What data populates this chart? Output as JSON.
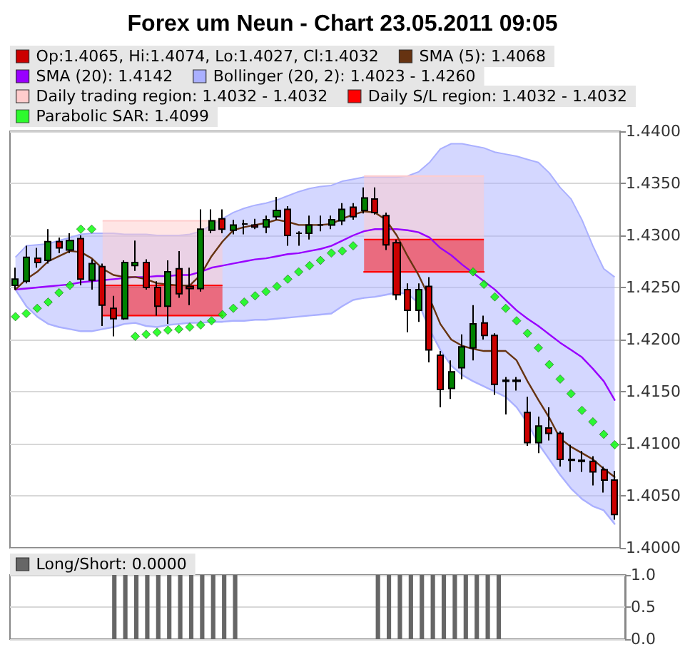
{
  "chart_data": [
    {
      "type": "candlestick",
      "title": "Forex um Neun - Chart 23.05.2011 09:05",
      "categories": [
        null,
        null,
        null,
        null,
        null,
        null,
        null,
        null,
        null,
        null,
        null,
        null,
        null,
        null,
        null,
        null,
        null,
        null,
        null,
        null,
        null,
        null,
        null,
        null,
        null,
        null,
        null,
        null,
        null,
        null,
        null,
        null,
        null,
        null,
        null,
        null,
        null,
        null,
        null,
        null,
        null,
        null,
        null,
        null,
        null,
        null,
        null,
        null,
        null,
        null,
        null,
        null,
        null,
        null,
        null,
        null
      ],
      "ylim": [
        1.4,
        1.44
      ],
      "yticks": [
        {
          "value": 1.4,
          "label": "1.4000"
        },
        {
          "value": 1.405,
          "label": "1.4050"
        },
        {
          "value": 1.41,
          "label": "1.4100"
        },
        {
          "value": 1.415,
          "label": "1.4150"
        },
        {
          "value": 1.42,
          "label": "1.4200"
        },
        {
          "value": 1.425,
          "label": "1.4250"
        },
        {
          "value": 1.43,
          "label": "1.4300"
        },
        {
          "value": 1.435,
          "label": "1.4350"
        },
        {
          "value": 1.44,
          "label": "1.4400"
        }
      ],
      "grid": "y",
      "legend": "top left",
      "tick_labels": "y",
      "series": [
        {
          "type": "area",
          "name": "Bollinger (20, 2): 1.4023 - 1.4260",
          "color": "#aab0ff",
          "values": [
            1.4279,
            1.429,
            1.4291,
            1.4292,
            1.4295,
            1.4298,
            1.4301,
            1.4302,
            1.4302,
            1.4302,
            1.4301,
            1.4301,
            1.4301,
            1.43,
            1.43,
            1.43,
            1.4301,
            1.4304,
            1.431,
            1.4316,
            1.4322,
            1.4326,
            1.4329,
            1.4331,
            1.4334,
            1.4338,
            1.4342,
            1.4345,
            1.4347,
            1.4348,
            1.4352,
            1.4354,
            1.4356,
            1.4356,
            1.4356,
            1.4356,
            1.4357,
            1.4361,
            1.437,
            1.4383,
            1.4388,
            1.4388,
            1.4386,
            1.4384,
            1.438,
            1.4378,
            1.4376,
            1.4373,
            1.437,
            1.436,
            1.4346,
            1.4335,
            1.4315,
            1.429,
            1.4268,
            1.426
          ]
        },
        {
          "type": "line",
          "color": "#aab0ff",
          "values": [
            1.4248,
            1.4232,
            1.4222,
            1.4215,
            1.4212,
            1.421,
            1.4208,
            1.4208,
            1.421,
            1.4212,
            1.4215,
            1.4216,
            1.4213,
            1.4212,
            1.4214,
            1.4215,
            1.4216,
            1.4216,
            1.4217,
            1.4217,
            1.4218,
            1.4218,
            1.4219,
            1.4219,
            1.422,
            1.4221,
            1.4222,
            1.4223,
            1.4224,
            1.4225,
            1.4232,
            1.4238,
            1.424,
            1.4241,
            1.4243,
            1.4245,
            1.4244,
            1.4235,
            1.421,
            1.419,
            1.4175,
            1.4166,
            1.416,
            1.4155,
            1.415,
            1.4145,
            1.4135,
            1.412,
            1.41,
            1.4085,
            1.407,
            1.4057,
            1.4047,
            1.404,
            1.4036,
            1.4023
          ]
        },
        {
          "type": "area",
          "name": "Daily trading region: 1.4032 - 1.4032",
          "color": "#ffcccc",
          "values": [
            null,
            null,
            null,
            null,
            null,
            null,
            null,
            null,
            1.4314,
            1.4314,
            1.4314,
            1.4314,
            1.4314,
            1.4314,
            1.4314,
            1.4314,
            1.4314,
            1.4314,
            1.4314,
            1.4314,
            null,
            null,
            null,
            null,
            null,
            null,
            null,
            null,
            null,
            null,
            null,
            null,
            1.4357,
            1.4357,
            1.4357,
            1.4357,
            1.4357,
            1.4357,
            1.4357,
            1.4357,
            1.4357,
            1.4357,
            1.4357,
            1.4357,
            null,
            null,
            null,
            null,
            null,
            null,
            null,
            null,
            null,
            null,
            null,
            null
          ]
        },
        {
          "type": "area",
          "name": "Daily S/L region: 1.4032 - 1.4032",
          "color": "#ff0000",
          "values": [
            null,
            null,
            null,
            null,
            null,
            null,
            null,
            null,
            1.4252,
            1.4252,
            1.4252,
            1.4252,
            1.4252,
            1.4252,
            1.4252,
            1.4252,
            1.4252,
            1.4252,
            1.4252,
            1.4252,
            null,
            null,
            null,
            null,
            null,
            null,
            null,
            null,
            null,
            null,
            null,
            null,
            1.4296,
            1.4296,
            1.4296,
            1.4296,
            1.4296,
            1.4296,
            1.4296,
            1.4296,
            1.4296,
            1.4296,
            1.4296,
            1.4296,
            null,
            null,
            null,
            null,
            null,
            null,
            null,
            null,
            null,
            null,
            null,
            null
          ]
        },
        {
          "type": "line",
          "color": "#ff0000",
          "values": [
            null,
            null,
            null,
            null,
            null,
            null,
            null,
            null,
            1.4223,
            1.4223,
            1.4223,
            1.4223,
            1.4223,
            1.4223,
            1.4223,
            1.4223,
            1.4223,
            1.4223,
            1.4223,
            1.4223,
            null,
            null,
            null,
            null,
            null,
            null,
            null,
            null,
            null,
            null,
            null,
            null,
            1.4265,
            1.4265,
            1.4265,
            1.4265,
            1.4265,
            1.4265,
            1.4265,
            1.4265,
            1.4265,
            1.4265,
            1.4265,
            1.4265,
            null,
            null,
            null,
            null,
            null,
            null,
            null,
            null,
            null,
            null,
            null,
            null
          ]
        },
        {
          "type": "line",
          "name": "SMA (20): 1.4142",
          "color": "#9900ff",
          "values": [
            1.4248,
            1.4249,
            1.425,
            1.4251,
            1.4252,
            1.4253,
            1.4255,
            1.4256,
            1.4257,
            1.4258,
            1.4259,
            1.426,
            1.426,
            1.4261,
            1.4261,
            1.4262,
            1.4262,
            1.4265,
            1.4269,
            1.4271,
            1.4273,
            1.4275,
            1.4277,
            1.4278,
            1.428,
            1.4282,
            1.4283,
            1.4285,
            1.4287,
            1.429,
            1.4295,
            1.43,
            1.4304,
            1.4306,
            1.4306,
            1.4306,
            1.4305,
            1.4303,
            1.4298,
            1.4288,
            1.4281,
            1.4272,
            1.4264,
            1.4256,
            1.4248,
            1.4238,
            1.4228,
            1.422,
            1.4213,
            1.4205,
            1.4197,
            1.419,
            1.4183,
            1.4172,
            1.416,
            1.4142
          ]
        },
        {
          "type": "line",
          "name": "SMA (5): 1.4068",
          "color": "#663311",
          "values": [
            1.4248,
            1.4258,
            1.4265,
            1.4275,
            1.428,
            1.4285,
            1.4284,
            1.4278,
            1.4268,
            1.4262,
            1.426,
            1.426,
            1.4258,
            1.4254,
            1.4253,
            1.4252,
            1.4252,
            1.4262,
            1.428,
            1.4294,
            1.4305,
            1.4308,
            1.431,
            1.4312,
            1.4315,
            1.4313,
            1.431,
            1.431,
            1.431,
            1.4311,
            1.4316,
            1.432,
            1.4323,
            1.4322,
            1.4315,
            1.43,
            1.428,
            1.4262,
            1.424,
            1.4215,
            1.42,
            1.4194,
            1.4191,
            1.4189,
            1.4189,
            1.4189,
            1.418,
            1.416,
            1.4142,
            1.4125,
            1.4105,
            1.4097,
            1.4091,
            1.4085,
            1.4076,
            1.4068
          ]
        },
        {
          "type": "scatter",
          "name": "Parabolic SAR: 1.4099",
          "color": "#00ff00",
          "marker": "diamond",
          "values": [
            1.4222,
            1.4225,
            1.423,
            1.4236,
            1.4245,
            1.4252,
            1.4306,
            1.4306,
            null,
            null,
            null,
            1.4203,
            1.4205,
            1.4207,
            1.4209,
            1.421,
            1.4212,
            1.4214,
            1.4218,
            1.4224,
            1.423,
            1.4236,
            1.4242,
            1.4246,
            1.4251,
            1.4258,
            1.4265,
            1.4271,
            1.4276,
            1.4283,
            1.4285,
            1.429,
            null,
            null,
            null,
            null,
            null,
            null,
            null,
            null,
            null,
            null,
            1.4265,
            1.4253,
            1.4241,
            1.423,
            1.4218,
            1.4206,
            1.4192,
            1.4176,
            1.4162,
            1.4148,
            1.4132,
            1.4121,
            1.4109,
            1.4099
          ]
        },
        {
          "type": "candlestick",
          "name": "Op:1.4065, Hi:1.4074, Lo:1.4027, Cl:1.4032",
          "color": "#cc0000",
          "colors": [
            "#008000",
            "#008000",
            "#cc0000",
            "#008000",
            "#cc0000",
            "#008000",
            "#cc0000",
            "#008000",
            "#cc0000",
            "#cc0000",
            "#008000",
            "#008000",
            "#cc0000",
            "#cc0000",
            "#008000",
            "#cc0000",
            "#cc0000",
            "#008000",
            "#008000",
            "#cc0000",
            "#008000",
            "#000000",
            "#cc0000",
            "#008000",
            "#008000",
            "#cc0000",
            "#000000",
            "#008000",
            "#000000",
            "#008000",
            "#008000",
            "#cc0000",
            "#008000",
            "#cc0000",
            "#cc0000",
            "#cc0000",
            "#cc0000",
            "#008000",
            "#cc0000",
            "#cc0000",
            "#008000",
            "#008000",
            "#008000",
            "#cc0000",
            "#cc0000",
            "#000000",
            "#000000",
            "#cc0000",
            "#008000",
            "#cc0000",
            "#cc0000",
            "#000000",
            "#000000",
            "#cc0000",
            "#cc0000",
            "#cc0000"
          ],
          "ohlc": [
            [
              1.4252,
              1.4269,
              1.4248,
              1.4258
            ],
            [
              1.4256,
              1.429,
              1.4254,
              1.4279
            ],
            [
              1.4278,
              1.4288,
              1.4269,
              1.4274
            ],
            [
              1.4276,
              1.4306,
              1.4273,
              1.4294
            ],
            [
              1.4294,
              1.4298,
              1.4283,
              1.4288
            ],
            [
              1.4286,
              1.4302,
              1.4283,
              1.4295
            ],
            [
              1.4297,
              1.43,
              1.4252,
              1.4258
            ],
            [
              1.4257,
              1.4277,
              1.4248,
              1.4273
            ],
            [
              1.427,
              1.4273,
              1.4213,
              1.4233
            ],
            [
              1.423,
              1.4242,
              1.4203,
              1.422
            ],
            [
              1.422,
              1.4276,
              1.4219,
              1.4274
            ],
            [
              1.4271,
              1.4295,
              1.4266,
              1.4274
            ],
            [
              1.4274,
              1.4277,
              1.4248,
              1.425
            ],
            [
              1.425,
              1.4256,
              1.4223,
              1.4232
            ],
            [
              1.4232,
              1.4276,
              1.4215,
              1.4265
            ],
            [
              1.4268,
              1.4285,
              1.424,
              1.4244
            ],
            [
              1.4251,
              1.4269,
              1.4233,
              1.4249
            ],
            [
              1.4249,
              1.4325,
              1.4246,
              1.4306
            ],
            [
              1.4305,
              1.4325,
              1.4302,
              1.4314
            ],
            [
              1.4316,
              1.4325,
              1.4302,
              1.4306
            ],
            [
              1.4305,
              1.4315,
              1.4301,
              1.431
            ],
            [
              1.4311,
              1.4315,
              1.4301,
              1.4311
            ],
            [
              1.431,
              1.4316,
              1.4306,
              1.4308
            ],
            [
              1.4308,
              1.4319,
              1.4302,
              1.4315
            ],
            [
              1.4318,
              1.4337,
              1.4315,
              1.4324
            ],
            [
              1.4325,
              1.4328,
              1.429,
              1.43
            ],
            [
              1.4302,
              1.4304,
              1.429,
              1.4302
            ],
            [
              1.4302,
              1.4319,
              1.4296,
              1.431
            ],
            [
              1.431,
              1.4319,
              1.4304,
              1.431
            ],
            [
              1.431,
              1.4319,
              1.4306,
              1.4315
            ],
            [
              1.4314,
              1.4331,
              1.431,
              1.4325
            ],
            [
              1.4327,
              1.4331,
              1.4315,
              1.4318
            ],
            [
              1.4324,
              1.4346,
              1.4321,
              1.4336
            ],
            [
              1.4335,
              1.4346,
              1.432,
              1.4322
            ],
            [
              1.4319,
              1.4322,
              1.4286,
              1.4291
            ],
            [
              1.4293,
              1.4296,
              1.4238,
              1.4243
            ],
            [
              1.4248,
              1.4254,
              1.4207,
              1.4228
            ],
            [
              1.4228,
              1.4254,
              1.4217,
              1.4248
            ],
            [
              1.4251,
              1.426,
              1.4178,
              1.419
            ],
            [
              1.4185,
              1.4189,
              1.4135,
              1.4152
            ],
            [
              1.4153,
              1.418,
              1.4143,
              1.4169
            ],
            [
              1.4173,
              1.4205,
              1.4162,
              1.4193
            ],
            [
              1.4192,
              1.4233,
              1.418,
              1.4215
            ],
            [
              1.4216,
              1.4223,
              1.42,
              1.4204
            ],
            [
              1.4204,
              1.4206,
              1.4147,
              1.4157
            ],
            [
              1.4161,
              1.4164,
              1.4128,
              1.416
            ],
            [
              1.4161,
              1.4164,
              1.4151,
              1.416
            ],
            [
              1.413,
              1.4145,
              1.4098,
              1.4101
            ],
            [
              1.4101,
              1.4126,
              1.4091,
              1.4117
            ],
            [
              1.4115,
              1.4135,
              1.4103,
              1.411
            ],
            [
              1.411,
              1.4112,
              1.4078,
              1.4085
            ],
            [
              1.4085,
              1.4099,
              1.4073,
              1.4084
            ],
            [
              1.4084,
              1.4093,
              1.4073,
              1.4083
            ],
            [
              1.4083,
              1.4088,
              1.406,
              1.4073
            ],
            [
              1.4075,
              1.4078,
              1.4053,
              1.4065
            ],
            [
              1.4065,
              1.4074,
              1.4027,
              1.4032
            ]
          ]
        }
      ]
    },
    {
      "type": "bar",
      "categories": [
        null,
        null,
        null,
        null,
        null,
        null,
        null,
        null,
        null,
        null,
        null,
        null,
        null,
        null,
        null,
        null,
        null,
        null,
        null,
        null,
        null,
        null,
        null,
        null,
        null,
        null,
        null,
        null,
        null,
        null,
        null,
        null,
        null,
        null,
        null,
        null,
        null,
        null,
        null,
        null,
        null,
        null,
        null,
        null,
        null,
        null,
        null,
        null,
        null,
        null,
        null,
        null,
        null,
        null,
        null,
        null
      ],
      "ylim": [
        0,
        1
      ],
      "yticks": [
        {
          "value": 0,
          "label": "0.0"
        },
        {
          "value": 0.5,
          "label": "0.5"
        },
        {
          "value": 1,
          "label": "1.0"
        }
      ],
      "grid": "y",
      "legend": "top left",
      "tick_labels": "y",
      "series": [
        {
          "name": "Long/Short: 0.0000",
          "color": "#666666",
          "values": [
            0,
            0,
            0,
            0,
            0,
            0,
            0,
            0,
            0,
            1,
            1,
            1,
            1,
            1,
            1,
            1,
            1,
            1,
            1,
            1,
            1,
            0,
            0,
            0,
            0,
            0,
            0,
            0,
            0,
            0,
            0,
            0,
            0,
            1,
            1,
            1,
            1,
            1,
            1,
            1,
            1,
            1,
            1,
            1,
            1,
            0,
            0,
            0,
            0,
            0,
            0,
            0,
            0,
            0,
            0,
            0
          ]
        }
      ]
    }
  ]
}
